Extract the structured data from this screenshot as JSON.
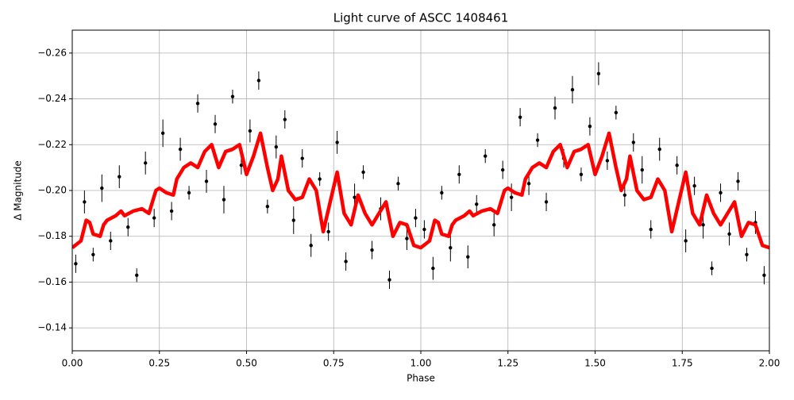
{
  "chart_data": {
    "type": "scatter",
    "title": "Light curve of ASCC 1408461",
    "x_label": "Phase",
    "y_label": "Δ Magnitude",
    "xlim": [
      0,
      2
    ],
    "ylim": [
      -0.13,
      -0.27
    ],
    "xticks": [
      {
        "value": 0,
        "label": "0.00"
      },
      {
        "value": 0.25,
        "label": "0.25"
      },
      {
        "value": 0.5,
        "label": "0.50"
      },
      {
        "value": 0.75,
        "label": "0.75"
      },
      {
        "value": 1,
        "label": "1.00"
      },
      {
        "value": 1.25,
        "label": "1.25"
      },
      {
        "value": 1.5,
        "label": "1.50"
      },
      {
        "value": 1.75,
        "label": "1.75"
      },
      {
        "value": 2,
        "label": "2.00"
      }
    ],
    "yticks": [
      {
        "value": -0.26,
        "label": "−0.26"
      },
      {
        "value": -0.24,
        "label": "−0.24"
      },
      {
        "value": -0.22,
        "label": "−0.22"
      },
      {
        "value": -0.2,
        "label": "−0.20"
      },
      {
        "value": -0.18,
        "label": "−0.18"
      },
      {
        "value": -0.16,
        "label": "−0.16"
      },
      {
        "value": -0.14,
        "label": "−0.14"
      }
    ],
    "grid": true,
    "points": {
      "color": "#000000",
      "x": [
        0.01,
        0.035,
        0.06,
        0.085,
        0.11,
        0.135,
        0.16,
        0.185,
        0.21,
        0.235,
        0.26,
        0.285,
        0.31,
        0.335,
        0.36,
        0.385,
        0.41,
        0.435,
        0.46,
        0.485,
        0.51,
        0.535,
        0.56,
        0.585,
        0.61,
        0.635,
        0.66,
        0.685,
        0.71,
        0.735,
        0.76,
        0.785,
        0.81,
        0.835,
        0.86,
        0.885,
        0.91,
        0.935,
        0.96,
        0.985,
        1.01,
        1.035,
        1.06,
        1.085,
        1.11,
        1.135,
        1.16,
        1.185,
        1.21,
        1.235,
        1.26,
        1.285,
        1.31,
        1.335,
        1.36,
        1.385,
        1.41,
        1.435,
        1.46,
        1.485,
        1.51,
        1.535,
        1.56,
        1.585,
        1.61,
        1.635,
        1.66,
        1.685,
        1.71,
        1.735,
        1.76,
        1.785,
        1.81,
        1.835,
        1.86,
        1.885,
        1.91,
        1.935,
        1.96,
        1.985
      ],
      "y": [
        -0.168,
        -0.195,
        -0.172,
        -0.201,
        -0.178,
        -0.206,
        -0.184,
        -0.163,
        -0.212,
        -0.188,
        -0.225,
        -0.191,
        -0.218,
        -0.199,
        -0.238,
        -0.204,
        -0.229,
        -0.196,
        -0.241,
        -0.211,
        -0.226,
        -0.248,
        -0.193,
        -0.219,
        -0.231,
        -0.187,
        -0.214,
        -0.176,
        -0.205,
        -0.182,
        -0.221,
        -0.169,
        -0.197,
        -0.208,
        -0.174,
        -0.192,
        -0.161,
        -0.203,
        -0.179,
        -0.188,
        -0.183,
        -0.166,
        -0.199,
        -0.175,
        -0.207,
        -0.171,
        -0.194,
        -0.215,
        -0.185,
        -0.209,
        -0.197,
        -0.232,
        -0.203,
        -0.222,
        -0.195,
        -0.236,
        -0.214,
        -0.244,
        -0.207,
        -0.228,
        -0.251,
        -0.213,
        -0.234,
        -0.198,
        -0.221,
        -0.209,
        -0.183,
        -0.218,
        -0.191,
        -0.211,
        -0.178,
        -0.202,
        -0.185,
        -0.166,
        -0.199,
        -0.181,
        -0.204,
        -0.172,
        -0.186,
        -0.163
      ],
      "yerr": [
        0.004,
        0.005,
        0.003,
        0.006,
        0.004,
        0.005,
        0.004,
        0.003,
        0.005,
        0.004,
        0.006,
        0.004,
        0.005,
        0.003,
        0.004,
        0.005,
        0.004,
        0.006,
        0.003,
        0.004,
        0.005,
        0.004,
        0.003,
        0.005,
        0.004,
        0.006,
        0.004,
        0.005,
        0.003,
        0.004,
        0.005,
        0.004,
        0.006,
        0.003,
        0.004,
        0.005,
        0.004,
        0.003,
        0.005,
        0.004,
        0.004,
        0.005,
        0.003,
        0.006,
        0.004,
        0.005,
        0.004,
        0.003,
        0.005,
        0.004,
        0.006,
        0.004,
        0.005,
        0.003,
        0.004,
        0.005,
        0.004,
        0.006,
        0.003,
        0.004,
        0.005,
        0.004,
        0.003,
        0.005,
        0.004,
        0.006,
        0.004,
        0.005,
        0.003,
        0.004,
        0.005,
        0.004,
        0.006,
        0.003,
        0.004,
        0.005,
        0.004,
        0.003,
        0.005,
        0.004
      ]
    },
    "model": {
      "color": "#ff0000",
      "x": [
        0,
        0.025,
        0.04,
        0.05,
        0.06,
        0.08,
        0.09,
        0.1,
        0.125,
        0.14,
        0.15,
        0.175,
        0.2,
        0.22,
        0.24,
        0.25,
        0.27,
        0.29,
        0.3,
        0.32,
        0.34,
        0.36,
        0.38,
        0.4,
        0.42,
        0.44,
        0.46,
        0.48,
        0.5,
        0.52,
        0.54,
        0.56,
        0.575,
        0.59,
        0.6,
        0.62,
        0.64,
        0.66,
        0.68,
        0.7,
        0.72,
        0.74,
        0.76,
        0.78,
        0.8,
        0.82,
        0.84,
        0.86,
        0.88,
        0.9,
        0.92,
        0.94,
        0.96,
        0.98,
        1.0,
        1.025,
        1.04,
        1.05,
        1.06,
        1.08,
        1.09,
        1.1,
        1.125,
        1.14,
        1.15,
        1.175,
        1.2,
        1.22,
        1.24,
        1.25,
        1.27,
        1.29,
        1.3,
        1.32,
        1.34,
        1.36,
        1.38,
        1.4,
        1.42,
        1.44,
        1.46,
        1.48,
        1.5,
        1.52,
        1.54,
        1.56,
        1.575,
        1.59,
        1.6,
        1.62,
        1.64,
        1.66,
        1.68,
        1.7,
        1.72,
        1.74,
        1.76,
        1.78,
        1.8,
        1.82,
        1.84,
        1.86,
        1.88,
        1.9,
        1.92,
        1.94,
        1.96,
        1.98,
        2.0
      ],
      "y": [
        -0.175,
        -0.178,
        -0.187,
        -0.186,
        -0.181,
        -0.18,
        -0.185,
        -0.187,
        -0.189,
        -0.191,
        -0.189,
        -0.191,
        -0.192,
        -0.19,
        -0.2,
        -0.201,
        -0.199,
        -0.198,
        -0.205,
        -0.21,
        -0.212,
        -0.21,
        -0.217,
        -0.22,
        -0.21,
        -0.217,
        -0.218,
        -0.22,
        -0.207,
        -0.215,
        -0.225,
        -0.21,
        -0.2,
        -0.205,
        -0.215,
        -0.2,
        -0.196,
        -0.197,
        -0.205,
        -0.2,
        -0.182,
        -0.195,
        -0.208,
        -0.19,
        -0.185,
        -0.198,
        -0.19,
        -0.185,
        -0.19,
        -0.195,
        -0.18,
        -0.186,
        -0.185,
        -0.176,
        -0.175,
        -0.178,
        -0.187,
        -0.186,
        -0.181,
        -0.18,
        -0.185,
        -0.187,
        -0.189,
        -0.191,
        -0.189,
        -0.191,
        -0.192,
        -0.19,
        -0.2,
        -0.201,
        -0.199,
        -0.198,
        -0.205,
        -0.21,
        -0.212,
        -0.21,
        -0.217,
        -0.22,
        -0.21,
        -0.217,
        -0.218,
        -0.22,
        -0.207,
        -0.215,
        -0.225,
        -0.21,
        -0.2,
        -0.205,
        -0.215,
        -0.2,
        -0.196,
        -0.197,
        -0.205,
        -0.2,
        -0.182,
        -0.195,
        -0.208,
        -0.19,
        -0.185,
        -0.198,
        -0.19,
        -0.185,
        -0.19,
        -0.195,
        -0.18,
        -0.186,
        -0.185,
        -0.176,
        -0.175
      ]
    }
  }
}
